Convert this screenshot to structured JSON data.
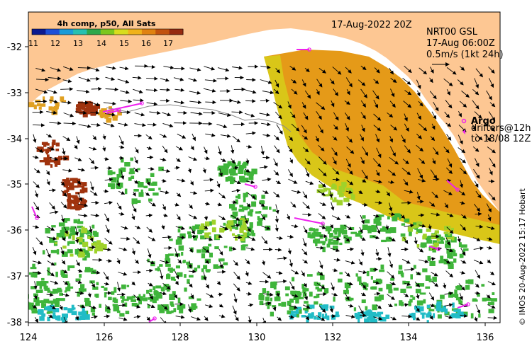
{
  "map": {
    "date_label": "17-Aug-2022 20Z",
    "colorbar": {
      "title": "4h comp, p50, All Sats",
      "ticks": [
        "11",
        "12",
        "13",
        "14",
        "15",
        "16",
        "17"
      ],
      "colors": [
        "#0c1a90",
        "#1d4fd8",
        "#1a9bd8",
        "#27c0b0",
        "#2ea84a",
        "#7cc71e",
        "#d8dd1e",
        "#f0b21a",
        "#e08210",
        "#c2520e",
        "#962a10"
      ]
    },
    "current_info": {
      "line1": "NRT00 GSL",
      "line2": "17-Aug 06:00Z",
      "line3": "0.5m/s (1kt 24h)"
    },
    "argo": {
      "title": "Argo",
      "line1": "drifters@12h",
      "line2": "to 18/08 12Z"
    },
    "credit": "© IMOS 20-Aug-2022 15:17 Hobart",
    "x_ticks": [
      "124",
      "126",
      "128",
      "130",
      "132",
      "134",
      "136"
    ],
    "y_ticks": [
      "-32",
      "-33",
      "-34",
      "-35",
      "-36",
      "-37",
      "-38"
    ],
    "colors": {
      "land": "#fdc793",
      "sst_warm": "#e59a18",
      "sst_mid": "#d9c618",
      "sst_green": "#3fb53a",
      "sst_cool": "#21bcc6",
      "sst_hot": "#a0330e",
      "argo": "#ee22ee"
    }
  }
}
